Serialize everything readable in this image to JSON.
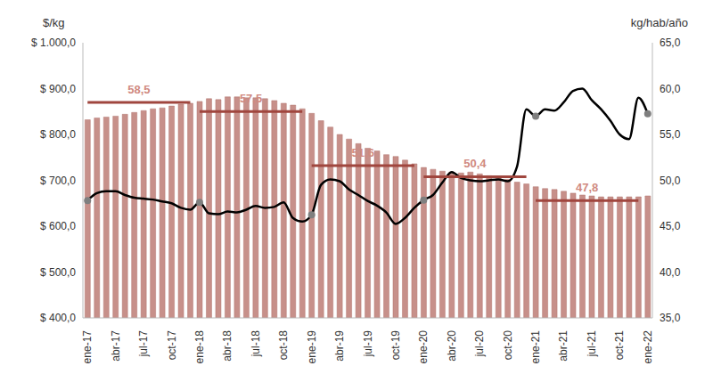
{
  "chart_data": {
    "type": "combo",
    "y_label": "$/kg",
    "y2_label": "kg/hab/año",
    "grid": false,
    "categories": [
      "ene-17",
      null,
      null,
      "abr-17",
      null,
      null,
      "jul-17",
      null,
      null,
      "oct-17",
      null,
      null,
      "ene-18",
      null,
      null,
      "abr-18",
      null,
      null,
      "jul-18",
      null,
      null,
      "oct-18",
      null,
      null,
      "ene-19",
      null,
      null,
      "abr-19",
      null,
      null,
      "jul-19",
      null,
      null,
      "oct-19",
      null,
      null,
      "ene-20",
      null,
      null,
      "abr-20",
      null,
      null,
      "jul-20",
      null,
      null,
      "oct-20",
      null,
      null,
      "ene-21",
      null,
      null,
      "abr-21",
      null,
      null,
      "jul-21",
      null,
      null,
      "oct-21",
      null,
      null,
      "ene-22"
    ],
    "series": [
      {
        "type": "bar",
        "axis": "y2",
        "color": "#c7908a",
        "values": [
          56.6,
          56.8,
          56.9,
          57.0,
          57.2,
          57.4,
          57.6,
          57.8,
          57.9,
          58.1,
          58.3,
          58.4,
          58.6,
          58.9,
          58.8,
          59.1,
          59.1,
          59.0,
          59.0,
          58.9,
          58.7,
          58.4,
          58.2,
          57.8,
          57.3,
          56.5,
          55.8,
          55.0,
          54.5,
          54.0,
          53.5,
          53.2,
          52.8,
          52.6,
          52.2,
          51.8,
          51.4,
          51.2,
          51.0,
          50.9,
          50.8,
          50.9,
          50.7,
          50.5,
          50.3,
          50.1,
          49.8,
          49.6,
          49.3,
          49.1,
          49.0,
          48.8,
          48.6,
          48.4,
          48.3,
          48.2,
          48.2,
          48.2,
          48.2,
          48.2,
          48.3
        ]
      },
      {
        "type": "line",
        "axis": "y",
        "color": "#000000",
        "marker": "none",
        "values": [
          656,
          672,
          676,
          676,
          668,
          662,
          660,
          658,
          654,
          650,
          640,
          636,
          652,
          628,
          626,
          632,
          630,
          636,
          644,
          640,
          642,
          652,
          618,
          610,
          625,
          690,
          702,
          698,
          680,
          668,
          655,
          645,
          630,
          605,
          618,
          640,
          657,
          668,
          695,
          718,
          705,
          700,
          698,
          700,
          702,
          698,
          730,
          855,
          840,
          855,
          852,
          870,
          895,
          900,
          875,
          855,
          830,
          800,
          790,
          880,
          845
        ]
      },
      {
        "type": "scatter",
        "axis": "y",
        "color": "#7f7f7f",
        "marker": "circle",
        "values": [
          656,
          null,
          null,
          null,
          null,
          null,
          null,
          null,
          null,
          null,
          null,
          null,
          652,
          null,
          null,
          null,
          null,
          null,
          null,
          null,
          null,
          null,
          null,
          null,
          625,
          null,
          null,
          null,
          null,
          null,
          null,
          null,
          null,
          null,
          null,
          null,
          657,
          null,
          null,
          null,
          null,
          null,
          null,
          null,
          null,
          null,
          null,
          null,
          840,
          null,
          null,
          null,
          null,
          null,
          null,
          null,
          null,
          null,
          null,
          null,
          845
        ]
      }
    ],
    "segments": [
      {
        "label": "58,5",
        "value": 58.5,
        "start": 0,
        "end": 11,
        "axis": "y2",
        "color": "#a0463e"
      },
      {
        "label": "57,5",
        "value": 57.5,
        "start": 12,
        "end": 23,
        "axis": "y2",
        "color": "#a0463e"
      },
      {
        "label": "51,6",
        "value": 51.6,
        "start": 24,
        "end": 35,
        "axis": "y2",
        "color": "#a0463e"
      },
      {
        "label": "50,4",
        "value": 50.4,
        "start": 36,
        "end": 47,
        "axis": "y2",
        "color": "#a0463e"
      },
      {
        "label": "47,8",
        "value": 47.8,
        "start": 48,
        "end": 59,
        "axis": "y2",
        "color": "#a0463e"
      }
    ],
    "ylim": [
      400,
      1000
    ],
    "yticks": [
      {
        "value": 400,
        "label": "$ 400,0"
      },
      {
        "value": 500,
        "label": "$ 500,0"
      },
      {
        "value": 600,
        "label": "$ 600,0"
      },
      {
        "value": 700,
        "label": "$ 700,0"
      },
      {
        "value": 800,
        "label": "$ 800,0"
      },
      {
        "value": 900,
        "label": "$ 900,0"
      },
      {
        "value": 1000,
        "label": "$ 1.000,0"
      }
    ],
    "y2lim": [
      35,
      65
    ],
    "y2ticks": [
      {
        "value": 35,
        "label": "35,0"
      },
      {
        "value": 40,
        "label": "40,0"
      },
      {
        "value": 45,
        "label": "45,0"
      },
      {
        "value": 50,
        "label": "50,0"
      },
      {
        "value": 55,
        "label": "55,0"
      },
      {
        "value": 60,
        "label": "60,0"
      },
      {
        "value": 65,
        "label": "65,0"
      }
    ]
  }
}
